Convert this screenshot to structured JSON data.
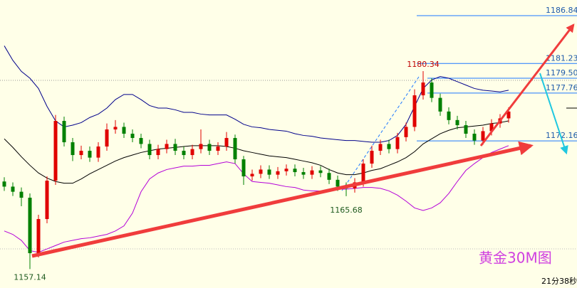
{
  "chart_data": {
    "type": "candlestick",
    "up_color": "#e00000",
    "down_color": "#008000",
    "ylim": [
      1154.92,
      1188.67
    ],
    "open": [
      1167.4,
      1166.8,
      1166.2,
      1165.5,
      1159,
      1163,
      1167.5,
      1174.5,
      1172,
      1170.5,
      1171,
      1170.2,
      1171.5,
      1173.5,
      1173.8,
      1173,
      1172.5,
      1171.8,
      1170.5,
      1171.2,
      1171.8,
      1171,
      1170.5,
      1171.2,
      1171.8,
      1171,
      1171.5,
      1172.5,
      1170,
      1168,
      1168.3,
      1168.8,
      1168.2,
      1168.6,
      1168.9,
      1168.5,
      1168.2,
      1168.7,
      1168.4,
      1167.6,
      1166.8,
      1166.6,
      1167.3,
      1169.5,
      1171,
      1171.8,
      1171.2,
      1172.6,
      1173.8,
      1177.5,
      1179,
      1177.2,
      1175.6,
      1174.6,
      1174,
      1173,
      1172.2,
      1173.3,
      1174.2,
      1174.8
    ],
    "high": [
      1167.9,
      1167.3,
      1166.7,
      1166.0,
      1163.5,
      1168.0,
      1175.2,
      1175.0,
      1172.5,
      1171.6,
      1171.5,
      1172.0,
      1174.2,
      1174.6,
      1174.3,
      1173.5,
      1173.0,
      1172.3,
      1171.7,
      1172.3,
      1172.4,
      1171.5,
      1171.7,
      1173.5,
      1172.3,
      1172.0,
      1173.2,
      1172.9,
      1170.4,
      1168.8,
      1169.3,
      1169.3,
      1169.1,
      1169.4,
      1169.4,
      1169.0,
      1169.2,
      1169.2,
      1168.9,
      1168.1,
      1167.3,
      1167.8,
      1170.0,
      1171.6,
      1172.3,
      1172.3,
      1173.1,
      1174.3,
      1178.2,
      1180.34,
      1179.5,
      1177.7,
      1176.1,
      1175.1,
      1174.5,
      1173.5,
      1173.8,
      1174.7,
      1175.3,
      1176.1
    ],
    "low": [
      1166.3,
      1165.7,
      1164.5,
      1157.14,
      1158.5,
      1162.5,
      1167.0,
      1171.5,
      1169.8,
      1170.0,
      1169.7,
      1169.7,
      1171.0,
      1173.0,
      1172.5,
      1172.0,
      1171.3,
      1170.0,
      1170.0,
      1170.7,
      1170.5,
      1170.0,
      1170.0,
      1170.7,
      1170.5,
      1170.5,
      1171.0,
      1169.5,
      1167.0,
      1167.5,
      1167.8,
      1167.7,
      1167.7,
      1168.1,
      1168.0,
      1167.7,
      1167.7,
      1167.9,
      1167.1,
      1166.3,
      1165.68,
      1166.1,
      1166.8,
      1169.0,
      1170.5,
      1170.7,
      1170.7,
      1172.1,
      1173.3,
      1177.0,
      1176.7,
      1175.1,
      1174.1,
      1173.5,
      1172.5,
      1171.7,
      1171.7,
      1172.8,
      1173.7,
      1174.3
    ],
    "close": [
      1166.8,
      1166.2,
      1165.5,
      1159,
      1163,
      1167.5,
      1174.5,
      1172,
      1170.5,
      1171,
      1170.2,
      1171.5,
      1173.5,
      1173.8,
      1173,
      1172.5,
      1171.8,
      1170.5,
      1171.2,
      1171.8,
      1171,
      1170.5,
      1171.2,
      1171.8,
      1171,
      1171.5,
      1172.5,
      1170,
      1168,
      1168.3,
      1168.8,
      1168.2,
      1168.6,
      1168.9,
      1168.5,
      1168.2,
      1168.7,
      1168.4,
      1167.6,
      1166.8,
      1166.6,
      1167.3,
      1169.5,
      1171,
      1171.8,
      1171.2,
      1172.6,
      1173.8,
      1177.5,
      1179,
      1177.2,
      1175.6,
      1174.6,
      1174,
      1173,
      1172.2,
      1173.3,
      1174.2,
      1174.8,
      1175.6
    ],
    "bands": [
      {
        "color": "#00008b",
        "values": [
          1183.3,
          1181.6,
          1180.3,
          1179.5,
          1178.3,
          1176.2,
          1174.5,
          1173.8,
          1174.0,
          1174.3,
          1174.9,
          1175.3,
          1176.0,
          1177.0,
          1177.6,
          1177.6,
          1177.0,
          1176.3,
          1176.0,
          1176.0,
          1175.8,
          1175.5,
          1175.5,
          1175.3,
          1175.2,
          1175.2,
          1175.2,
          1174.7,
          1174.1,
          1173.8,
          1173.7,
          1173.5,
          1173.4,
          1173.3,
          1173.0,
          1172.8,
          1172.7,
          1172.5,
          1172.4,
          1172.3,
          1172.2,
          1172.2,
          1172.1,
          1172.0,
          1172.0,
          1172.2,
          1172.8,
          1174.1,
          1176.2,
          1178.3,
          1179.3,
          1179.7,
          1179.5,
          1179.1,
          1178.7,
          1178.3,
          1178.1,
          1178.0,
          1177.9,
          1178.1
        ]
      },
      {
        "color": "#000000",
        "values": [
          1172.4,
          1171.4,
          1170.3,
          1169.3,
          1168.4,
          1167.8,
          1167.4,
          1167.2,
          1167.2,
          1167.7,
          1168.3,
          1168.8,
          1169.3,
          1169.8,
          1170.2,
          1170.5,
          1170.8,
          1171.0,
          1171.2,
          1171.3,
          1171.4,
          1171.5,
          1171.6,
          1171.6,
          1171.6,
          1171.6,
          1171.5,
          1171.3,
          1171.0,
          1170.8,
          1170.6,
          1170.4,
          1170.3,
          1170.2,
          1170.0,
          1169.8,
          1169.6,
          1169.3,
          1168.8,
          1168.4,
          1168.2,
          1168.2,
          1168.4,
          1168.7,
          1168.9,
          1169.3,
          1169.7,
          1170.2,
          1170.9,
          1171.8,
          1172.4,
          1173.0,
          1173.4,
          1173.7,
          1173.8,
          1173.9,
          1174.0,
          1174.2,
          1174.3,
          1174.5
        ]
      },
      {
        "color": "#b400d8",
        "values": [
          1161.6,
          1161.2,
          1160.5,
          1159.3,
          1159.1,
          1159.5,
          1159.9,
          1160.3,
          1160.5,
          1160.7,
          1160.8,
          1161.0,
          1161.2,
          1161.6,
          1162.2,
          1163.7,
          1166.2,
          1167.7,
          1168.4,
          1168.8,
          1169.0,
          1169.2,
          1169.2,
          1169.3,
          1169.3,
          1169.5,
          1169.7,
          1169.5,
          1168.3,
          1167.4,
          1167.3,
          1167.2,
          1167.0,
          1166.8,
          1166.7,
          1166.4,
          1166.3,
          1166.3,
          1166.4,
          1166.5,
          1166.5,
          1166.6,
          1166.7,
          1166.7,
          1166.6,
          1166.3,
          1165.8,
          1165.1,
          1164.3,
          1164.0,
          1164.3,
          1164.9,
          1166.0,
          1167.4,
          1168.7,
          1169.5,
          1170.2,
          1170.8,
          1171.2,
          1171.6
        ]
      }
    ],
    "levels": [
      1186.84,
      1181.23,
      {
        "value": 1179.5,
        "label": "1179.50"
      },
      1177.76,
      1172.16
    ],
    "level_color": "#1e78ff",
    "title": "黄金30M图",
    "timer": "21分38秒"
  }
}
